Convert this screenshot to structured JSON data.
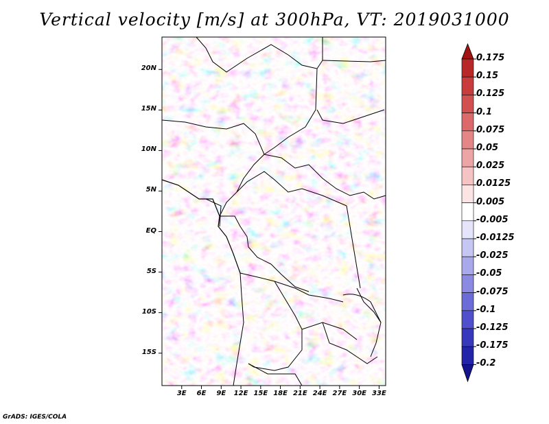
{
  "title": "Vertical velocity [m/s] at 300hPa, VT: 2019031000",
  "credit": "GrADS: IGES/COLA",
  "chart_data": {
    "type": "heatmap",
    "variable": "Vertical velocity",
    "units": "m/s",
    "level": "300hPa",
    "valid_time": "2019031000",
    "lon_range": [
      0,
      34
    ],
    "lat_range": [
      -19,
      24
    ],
    "x_ticks": [
      "3E",
      "6E",
      "9E",
      "12E",
      "15E",
      "18E",
      "21E",
      "24E",
      "27E",
      "30E",
      "33E"
    ],
    "x_tick_values": [
      3,
      6,
      9,
      12,
      15,
      18,
      21,
      24,
      27,
      30,
      33
    ],
    "y_ticks": [
      "20N",
      "15N",
      "10N",
      "5N",
      "EQ",
      "5S",
      "10S",
      "15S"
    ],
    "y_tick_values": [
      20,
      15,
      10,
      5,
      0,
      -5,
      -10,
      -15
    ],
    "colorbar": {
      "levels": [
        "0.175",
        "0.15",
        "0.125",
        "0.1",
        "0.075",
        "0.05",
        "0.025",
        "0.0125",
        "0.005",
        "-0.005",
        "-0.0125",
        "-0.025",
        "-0.05",
        "-0.075",
        "-0.1",
        "-0.125",
        "-0.175",
        "-0.2"
      ],
      "colors": [
        "#a01414",
        "#b82828",
        "#c83c3c",
        "#d25050",
        "#dc6a6a",
        "#e48686",
        "#eca4a4",
        "#f4c4c4",
        "#fae4e4",
        "#ffffff",
        "#e4e4fa",
        "#c6c6f2",
        "#a8a8ea",
        "#8a8ae2",
        "#6c6cd8",
        "#5050cc",
        "#3838bc",
        "#2424a8",
        "#14148c"
      ]
    }
  }
}
